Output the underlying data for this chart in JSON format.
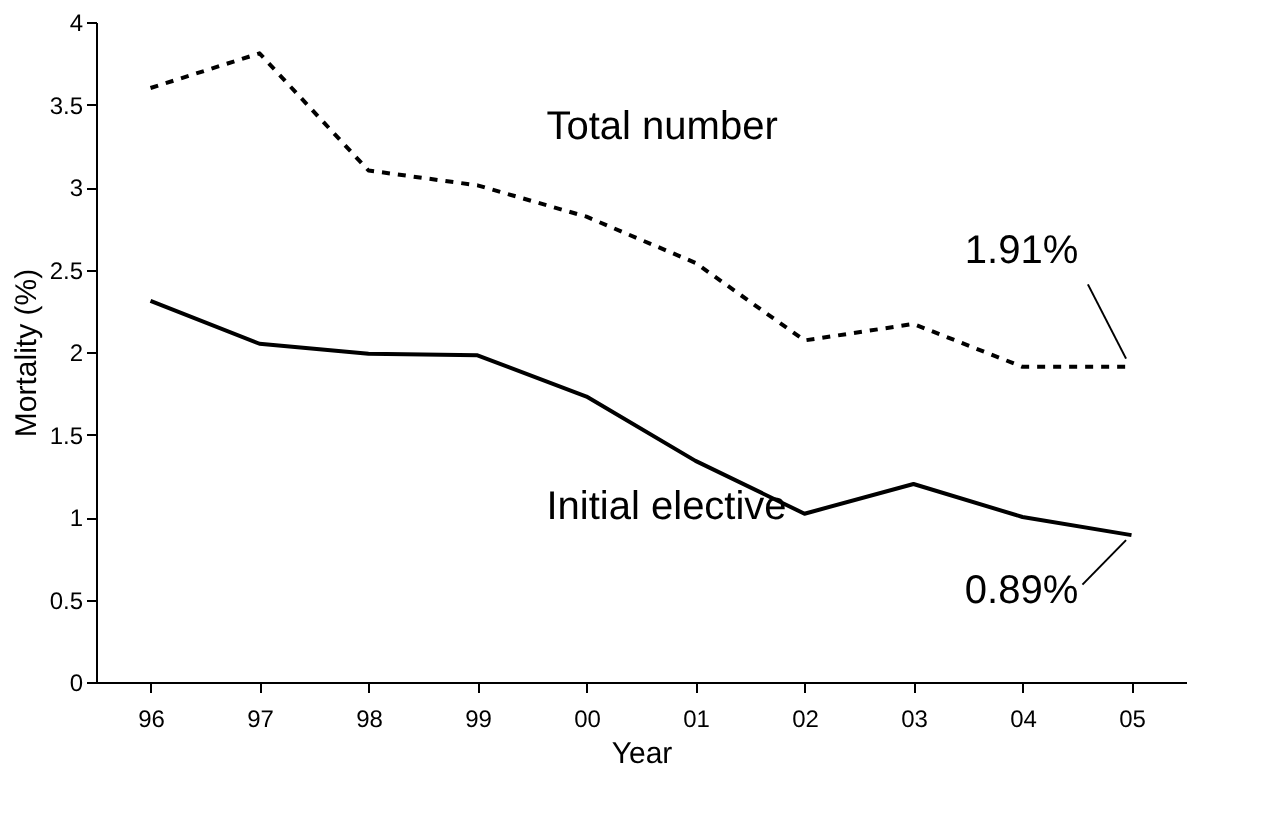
{
  "chart_data": {
    "type": "line",
    "xlabel": "Year",
    "ylabel": "Mortality (%)",
    "categories": [
      "96",
      "97",
      "98",
      "99",
      "00",
      "01",
      "02",
      "03",
      "04",
      "05"
    ],
    "series": [
      {
        "name": "Total number",
        "color": "#000000",
        "line_style": "dashed",
        "values": [
          3.6,
          3.81,
          3.1,
          3.01,
          2.82,
          2.54,
          2.07,
          2.17,
          1.91,
          1.91
        ]
      },
      {
        "name": "Initial elective",
        "color": "#000000",
        "line_style": "solid",
        "values": [
          2.31,
          2.05,
          1.99,
          1.98,
          1.73,
          1.34,
          1.02,
          1.2,
          1.0,
          0.89
        ]
      }
    ],
    "ylim": [
      0,
      4
    ],
    "yticks": [
      0,
      0.5,
      1,
      1.5,
      2,
      2.5,
      3,
      3.5,
      4
    ],
    "grid": false,
    "marker": "none",
    "annotations": [
      {
        "text": "1.91%",
        "x": "05",
        "y": 1.91
      },
      {
        "text": "0.89%",
        "x": "05",
        "y": 0.89
      }
    ]
  }
}
